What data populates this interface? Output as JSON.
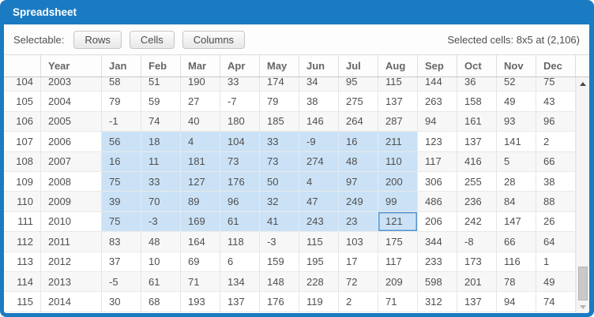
{
  "window": {
    "title": "Spreadsheet"
  },
  "toolbar": {
    "label": "Selectable:",
    "buttons": [
      {
        "label": "Rows"
      },
      {
        "label": "Cells"
      },
      {
        "label": "Columns"
      }
    ],
    "status": "Selected cells: 8x5 at (2,106)"
  },
  "table": {
    "columns": [
      "Year",
      "Jan",
      "Feb",
      "Mar",
      "Apr",
      "May",
      "Jun",
      "Jul",
      "Aug",
      "Sep",
      "Oct",
      "Nov",
      "Dec"
    ],
    "rows": [
      {
        "num": 104,
        "year": 2003,
        "values": [
          58,
          51,
          190,
          33,
          174,
          34,
          95,
          115,
          144,
          36,
          52,
          75
        ]
      },
      {
        "num": 105,
        "year": 2004,
        "values": [
          79,
          59,
          27,
          -7,
          79,
          38,
          275,
          137,
          263,
          158,
          49,
          43
        ]
      },
      {
        "num": 106,
        "year": 2005,
        "values": [
          -1,
          74,
          40,
          180,
          185,
          146,
          264,
          287,
          94,
          161,
          93,
          96
        ]
      },
      {
        "num": 107,
        "year": 2006,
        "values": [
          56,
          18,
          4,
          104,
          33,
          -9,
          16,
          211,
          123,
          137,
          141,
          2
        ]
      },
      {
        "num": 108,
        "year": 2007,
        "values": [
          16,
          11,
          181,
          73,
          73,
          274,
          48,
          110,
          117,
          416,
          5,
          66
        ]
      },
      {
        "num": 109,
        "year": 2008,
        "values": [
          75,
          33,
          127,
          176,
          50,
          4,
          97,
          200,
          306,
          255,
          28,
          38
        ]
      },
      {
        "num": 110,
        "year": 2009,
        "values": [
          39,
          70,
          89,
          96,
          32,
          47,
          249,
          99,
          486,
          236,
          84,
          88
        ]
      },
      {
        "num": 111,
        "year": 2010,
        "values": [
          75,
          -3,
          169,
          61,
          41,
          243,
          23,
          121,
          206,
          242,
          147,
          26
        ]
      },
      {
        "num": 112,
        "year": 2011,
        "values": [
          83,
          48,
          164,
          118,
          -3,
          115,
          103,
          175,
          344,
          -8,
          66,
          64
        ]
      },
      {
        "num": 113,
        "year": 2012,
        "values": [
          37,
          10,
          69,
          6,
          159,
          195,
          17,
          117,
          233,
          173,
          116,
          1
        ]
      },
      {
        "num": 114,
        "year": 2013,
        "values": [
          -5,
          61,
          71,
          134,
          148,
          228,
          72,
          209,
          598,
          201,
          78,
          49
        ]
      },
      {
        "num": 115,
        "year": 2014,
        "values": [
          30,
          68,
          193,
          137,
          176,
          119,
          2,
          71,
          312,
          137,
          94,
          74
        ]
      }
    ],
    "selection": {
      "first_row_num": 107,
      "last_row_num": 111,
      "first_col": "Jan",
      "last_col": "Aug",
      "active_cell": {
        "row_num": 111,
        "col": "Aug",
        "value": 121
      }
    }
  },
  "colors": {
    "accent": "#1b7bc2",
    "selection_fill": "#cbe2f6",
    "active_cell_border": "#5695cd"
  }
}
